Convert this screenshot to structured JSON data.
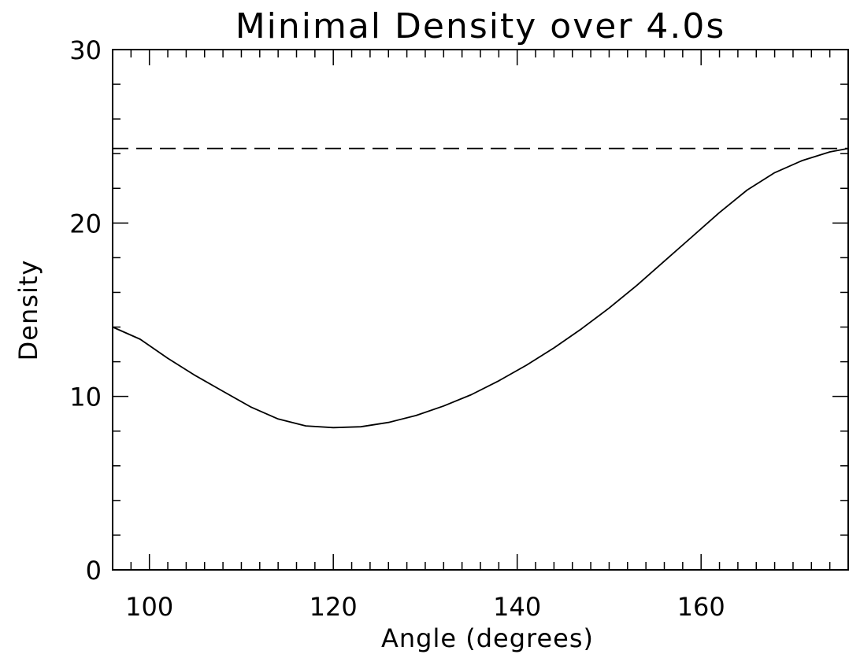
{
  "chart_data": {
    "type": "line",
    "title": "Minimal Density over 4.0s",
    "xlabel": "Angle (degrees)",
    "ylabel": "Density",
    "xlim": [
      96,
      176
    ],
    "ylim": [
      0,
      30
    ],
    "x_ticks": [
      100,
      120,
      140,
      160
    ],
    "y_ticks": [
      0,
      10,
      20,
      30
    ],
    "x_tick_labels": [
      "100",
      "120",
      "140",
      "160"
    ],
    "y_tick_labels": [
      "0",
      "10",
      "20",
      "30"
    ],
    "x_minor_step": 2,
    "y_minor_step": 2,
    "grid": false,
    "series": [
      {
        "style": "solid",
        "x": [
          96,
          99,
          102,
          105,
          108,
          111,
          114,
          117,
          120,
          123,
          126,
          129,
          132,
          135,
          138,
          141,
          144,
          147,
          150,
          153,
          156,
          159,
          162,
          165,
          168,
          171,
          174,
          176
        ],
        "y": [
          14.0,
          13.3,
          12.2,
          11.2,
          10.3,
          9.4,
          8.7,
          8.3,
          8.2,
          8.25,
          8.5,
          8.9,
          9.45,
          10.1,
          10.9,
          11.8,
          12.8,
          13.9,
          15.1,
          16.4,
          17.8,
          19.2,
          20.6,
          21.9,
          22.9,
          23.6,
          24.1,
          24.3
        ]
      },
      {
        "style": "dashed",
        "x": [
          96,
          176
        ],
        "y": [
          24.3,
          24.3
        ]
      }
    ]
  }
}
